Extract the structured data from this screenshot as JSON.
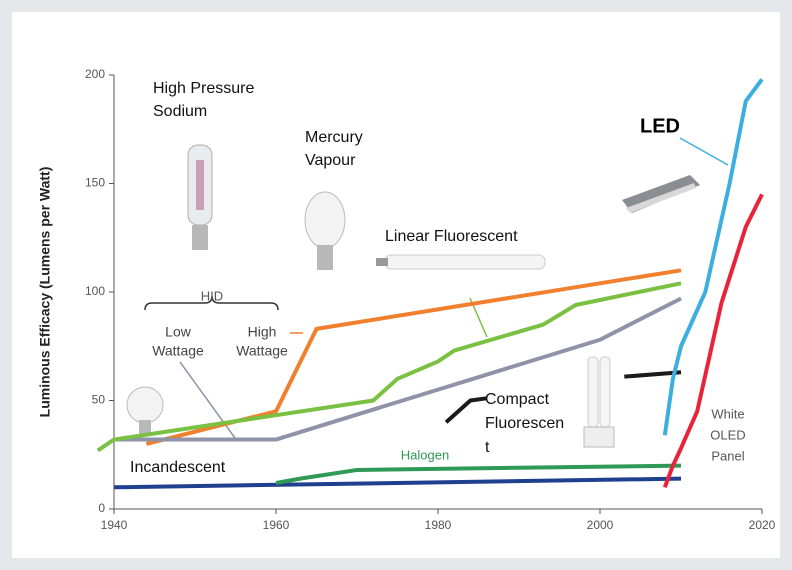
{
  "chart_data": {
    "type": "line",
    "y_label": "Luminous Efficacy (Lumens per Watt)",
    "xlim": [
      1940,
      2020
    ],
    "xticks": [
      1940,
      1960,
      1980,
      2000,
      2020
    ],
    "ylim": [
      0,
      200
    ],
    "yticks": [
      0,
      50,
      100,
      150,
      200
    ],
    "series": [
      {
        "color": "#1f3f8f",
        "x": [
          1940,
          2010
        ],
        "values": [
          10,
          14
        ]
      },
      {
        "color": "#2e9a55",
        "x": [
          1960,
          1963,
          1970,
          2010
        ],
        "values": [
          12,
          14,
          18,
          20
        ]
      },
      {
        "color": "#f07f2e",
        "x": [
          1944,
          1960,
          1965,
          2010
        ],
        "values": [
          30,
          45,
          83,
          110
        ]
      },
      {
        "color": "#8f93a8",
        "x": [
          1940,
          1960,
          1980,
          2000,
          2010
        ],
        "values": [
          32,
          32,
          55,
          78,
          97
        ]
      },
      {
        "color": "#7ac143",
        "x": [
          1938,
          1940,
          1972,
          1975,
          1980,
          1982,
          1993,
          1997,
          2010
        ],
        "values": [
          27,
          32,
          50,
          60,
          68,
          73,
          85,
          94,
          104
        ]
      },
      {
        "color": "#1a1a1a",
        "x": [
          1981,
          1984,
          1986,
          1994,
          2003,
          2010
        ],
        "values": [
          40,
          50,
          51,
          null,
          61,
          63
        ]
      },
      {
        "color": "#3bb0e0",
        "x": [
          2008,
          2009,
          2010,
          2013,
          2016,
          2018,
          2020
        ],
        "values": [
          34,
          60,
          75,
          100,
          150,
          188,
          198
        ]
      },
      {
        "color": "#e8243a",
        "x": [
          2008,
          2009,
          2010,
          2012,
          2015,
          2018,
          2020
        ],
        "values": [
          10,
          20,
          28,
          45,
          95,
          130,
          145
        ]
      }
    ],
    "annotations": [
      {
        "lines": [
          "High Pressure",
          "Sodium"
        ],
        "color": "#111"
      },
      {
        "lines": [
          "Mercury",
          "Vapour"
        ],
        "color": "#111"
      },
      {
        "lines": [
          "Linear Fluorescent"
        ],
        "color": "#111"
      },
      {
        "lines": [
          "HID"
        ],
        "color": "#555"
      },
      {
        "lines": [
          "Low",
          "Wattage"
        ],
        "color": "#444"
      },
      {
        "lines": [
          "High",
          "Wattage"
        ],
        "color": "#444"
      },
      {
        "lines": [
          "Incandescent"
        ],
        "color": "#111"
      },
      {
        "lines": [
          "Halogen"
        ],
        "color": "#2e9a55"
      },
      {
        "lines": [
          "Compact",
          "Fluorescen",
          "t"
        ],
        "color": "#111"
      },
      {
        "lines": [
          "White",
          "OLED",
          "Panel"
        ],
        "color": "#555"
      },
      {
        "lines": [
          "LED"
        ],
        "color": "#000"
      }
    ]
  }
}
